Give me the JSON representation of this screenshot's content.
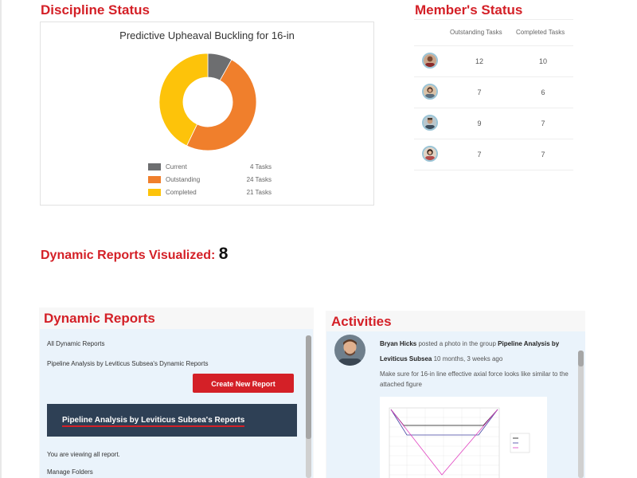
{
  "discipline": {
    "title": "Discipline Status",
    "chart_title": "Predictive Upheaval Buckling for 16-in",
    "legend": [
      {
        "name": "Current",
        "count": "4 Tasks",
        "value": 4,
        "color": "#6d6e70"
      },
      {
        "name": "Outstanding",
        "count": "24 Tasks",
        "value": 24,
        "color": "#f07f2c"
      },
      {
        "name": "Completed",
        "count": "21 Tasks",
        "value": 21,
        "color": "#fdc30a"
      }
    ]
  },
  "chart_data": {
    "type": "pie",
    "title": "Predictive Upheaval Buckling for 16-in",
    "categories": [
      "Current",
      "Outstanding",
      "Completed"
    ],
    "values": [
      4,
      24,
      21
    ]
  },
  "members": {
    "title": "Member's Status",
    "col_outstanding": "Outstanding Tasks",
    "col_completed": "Completed Tasks",
    "rows": [
      {
        "outstanding": "12",
        "completed": "10"
      },
      {
        "outstanding": "7",
        "completed": "6"
      },
      {
        "outstanding": "9",
        "completed": "7"
      },
      {
        "outstanding": "7",
        "completed": "7"
      }
    ]
  },
  "visualized": {
    "label": "Dynamic Reports Visualized:",
    "count": "8"
  },
  "reports": {
    "title": "Dynamic Reports",
    "all_link": "All Dynamic Reports",
    "pipeline_link": "Pipeline Analysis by Leviticus Subsea's Dynamic Reports",
    "create_button": "Create New Report",
    "banner_title": "Pipeline Analysis by Leviticus Subsea's Reports",
    "viewing_text": "You are viewing all report.",
    "manage_folders": "Manage Folders"
  },
  "activities": {
    "title": "Activities",
    "user": "Bryan Hicks",
    "action": "posted a photo in the group",
    "group": "Pipeline Analysis by Leviticus Subsea",
    "time": "10 months, 3 weeks ago",
    "body": "Make sure for 16-in line effective axial force looks like similar to the attached figure"
  }
}
